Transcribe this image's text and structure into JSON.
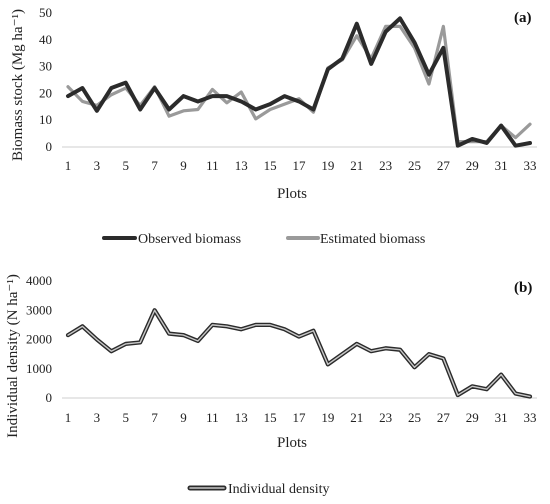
{
  "chart_data": [
    {
      "panel_label": "(a)",
      "type": "line",
      "ylabel": "Biomass stock (Mg ha⁻¹)",
      "xlabel": "Plots",
      "ylim": [
        0,
        50
      ],
      "yticks": [
        0,
        10,
        20,
        30,
        40,
        50
      ],
      "x": [
        1,
        2,
        3,
        4,
        5,
        6,
        7,
        8,
        9,
        10,
        11,
        12,
        13,
        14,
        15,
        16,
        17,
        18,
        19,
        20,
        21,
        22,
        23,
        24,
        25,
        26,
        27,
        28,
        29,
        30,
        31,
        32,
        33
      ],
      "xtick_labels": [
        "1",
        "3",
        "5",
        "7",
        "9",
        "11",
        "13",
        "15",
        "17",
        "19",
        "21",
        "23",
        "25",
        "27",
        "29",
        "31",
        "33"
      ],
      "xtick_values": [
        1,
        3,
        5,
        7,
        9,
        11,
        13,
        15,
        17,
        19,
        21,
        23,
        25,
        27,
        29,
        31,
        33
      ],
      "grid": false,
      "legend_position": "bottom",
      "colors": {
        "observed": "#2b2b2b",
        "estimated": "#9a9a9a"
      },
      "series": [
        {
          "name": "Observed biomass",
          "values": [
            19,
            22,
            13.5,
            22,
            24,
            14,
            22,
            14,
            19,
            17,
            19,
            19,
            17,
            14,
            16,
            19,
            17,
            14,
            29,
            33,
            46,
            31,
            43,
            48,
            39,
            27,
            37,
            0.5,
            3,
            1.5,
            8,
            0.5,
            1.5
          ]
        },
        {
          "name": "Estimated biomass",
          "values": [
            22.5,
            17,
            15.5,
            19.5,
            22,
            15.5,
            22.5,
            11.5,
            13.5,
            14,
            21.5,
            16.5,
            20.5,
            10.5,
            14,
            16,
            18,
            13,
            29.5,
            32.5,
            41.5,
            33,
            45,
            45,
            37,
            23.5,
            45,
            2,
            2,
            2,
            8,
            3.5,
            8.5
          ]
        }
      ]
    },
    {
      "panel_label": "(b)",
      "type": "line",
      "ylabel": "Individual density (N ha⁻¹)",
      "xlabel": "Plots",
      "ylim": [
        0,
        4000
      ],
      "yticks": [
        0,
        1000,
        2000,
        3000,
        4000
      ],
      "x": [
        1,
        2,
        3,
        4,
        5,
        6,
        7,
        8,
        9,
        10,
        11,
        12,
        13,
        14,
        15,
        16,
        17,
        18,
        19,
        20,
        21,
        22,
        23,
        24,
        25,
        26,
        27,
        28,
        29,
        30,
        31,
        32,
        33
      ],
      "xtick_labels": [
        "1",
        "3",
        "5",
        "7",
        "9",
        "11",
        "13",
        "15",
        "17",
        "19",
        "21",
        "23",
        "25",
        "27",
        "29",
        "31",
        "33"
      ],
      "xtick_values": [
        1,
        3,
        5,
        7,
        9,
        11,
        13,
        15,
        17,
        19,
        21,
        23,
        25,
        27,
        29,
        31,
        33
      ],
      "grid": false,
      "legend_position": "bottom",
      "colors": {
        "density": "#2b2b2b",
        "density_inner": "#c8c8c8"
      },
      "series": [
        {
          "name": "Individual density",
          "values": [
            2150,
            2450,
            2000,
            1600,
            1850,
            1900,
            3000,
            2200,
            2150,
            1950,
            2500,
            2450,
            2350,
            2500,
            2500,
            2350,
            2100,
            2300,
            1150,
            1500,
            1850,
            1600,
            1700,
            1650,
            1050,
            1500,
            1350,
            100,
            400,
            300,
            800,
            150,
            50
          ]
        }
      ]
    }
  ]
}
